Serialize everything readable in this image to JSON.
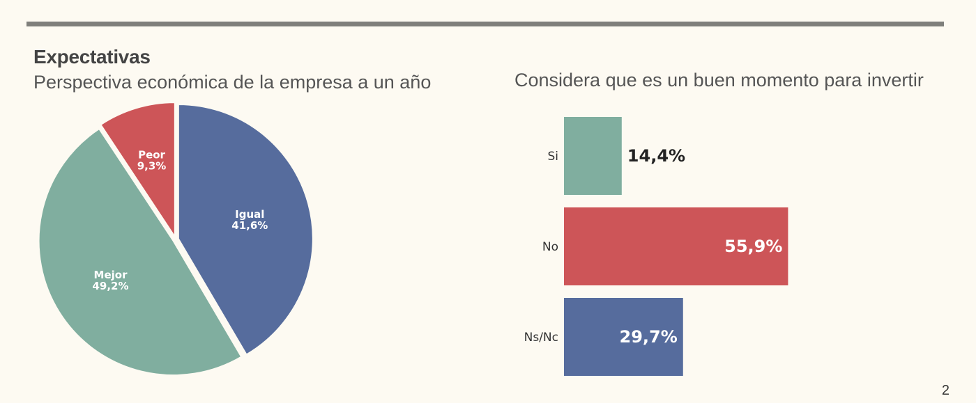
{
  "section_title": "Expectativas",
  "page_number": "2",
  "colors": {
    "green": "#80ae9f",
    "red": "#cd5558",
    "blue": "#566c9d"
  },
  "chart_data": [
    {
      "type": "pie",
      "title": "Perspectiva económica de la empresa a un año",
      "slices": [
        {
          "label": "Igual",
          "value": 41.6,
          "value_label": "41,6%",
          "color": "#566c9d"
        },
        {
          "label": "Mejor",
          "value": 49.2,
          "value_label": "49,2%",
          "color": "#80ae9f"
        },
        {
          "label": "Peor",
          "value": 9.3,
          "value_label": "9,3%",
          "color": "#cd5558"
        }
      ],
      "start": "12 o'clock",
      "direction": "clockwise"
    },
    {
      "type": "bar",
      "orientation": "horizontal",
      "title": "Considera que es un buen momento para invertir",
      "categories": [
        "Si",
        "No",
        "Ns/Nc"
      ],
      "values": [
        14.4,
        55.9,
        29.7
      ],
      "value_labels": [
        "14,4%",
        "55,9%",
        "29,7%"
      ],
      "colors": [
        "#80ae9f",
        "#cd5558",
        "#566c9d"
      ],
      "xlim": [
        0,
        60
      ],
      "grid": false,
      "legend": "none"
    }
  ]
}
